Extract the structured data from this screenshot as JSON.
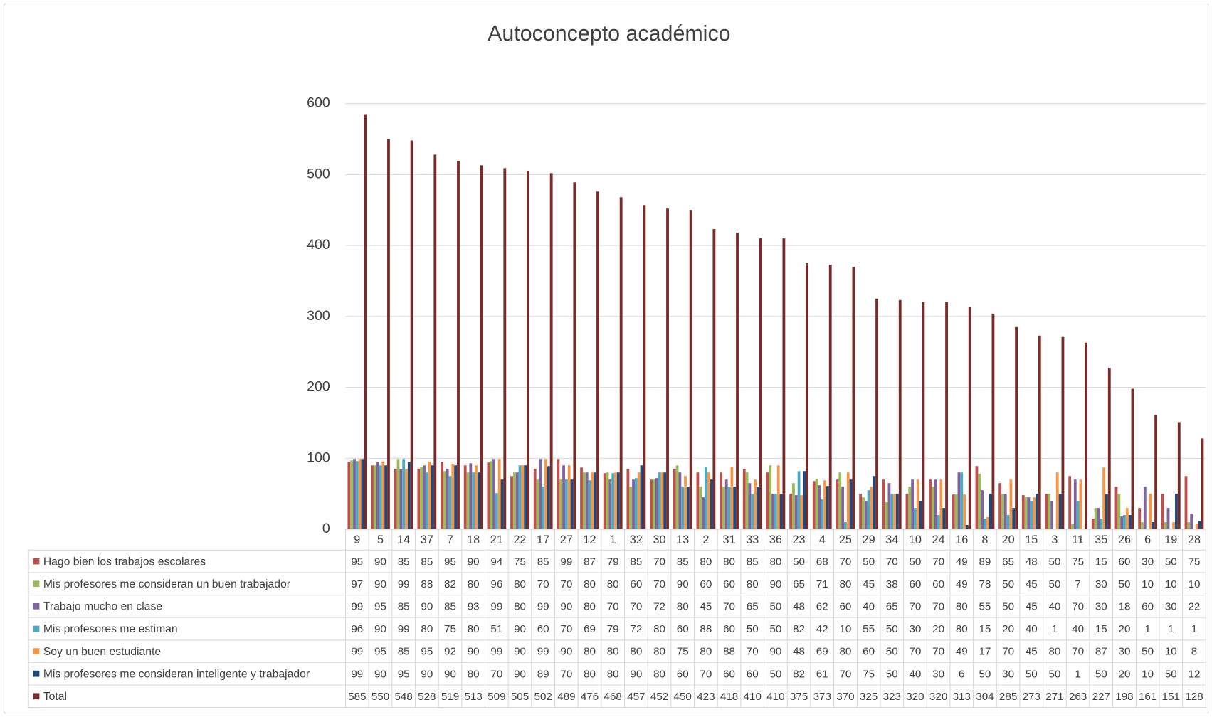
{
  "chart_data": {
    "type": "bar",
    "title": "Autoconcepto académico",
    "categories": [
      "9",
      "5",
      "14",
      "37",
      "7",
      "18",
      "21",
      "22",
      "17",
      "27",
      "12",
      "1",
      "32",
      "30",
      "13",
      "2",
      "31",
      "33",
      "36",
      "23",
      "4",
      "25",
      "29",
      "34",
      "10",
      "24",
      "16",
      "8",
      "20",
      "15",
      "3",
      "11",
      "35",
      "26",
      "6",
      "19",
      "28"
    ],
    "series": [
      {
        "name": "Hago bien los trabajos escolares",
        "color": "#c0504d",
        "values": [
          95,
          90,
          85,
          85,
          95,
          90,
          94,
          75,
          85,
          99,
          87,
          79,
          85,
          70,
          85,
          80,
          80,
          85,
          80,
          50,
          68,
          70,
          50,
          70,
          50,
          70,
          49,
          89,
          65,
          48,
          50,
          75,
          15,
          60,
          30,
          50,
          75
        ]
      },
      {
        "name": "Mis profesores me consideran un buen trabajador",
        "color": "#9bbb59",
        "values": [
          97,
          90,
          99,
          88,
          82,
          80,
          96,
          80,
          70,
          70,
          80,
          80,
          60,
          70,
          90,
          60,
          60,
          80,
          90,
          65,
          71,
          80,
          45,
          38,
          60,
          60,
          49,
          78,
          50,
          45,
          50,
          7,
          30,
          50,
          10,
          10,
          10
        ]
      },
      {
        "name": "Trabajo mucho en clase",
        "color": "#8064a2",
        "values": [
          99,
          95,
          85,
          90,
          85,
          93,
          99,
          80,
          99,
          90,
          80,
          70,
          70,
          72,
          80,
          45,
          70,
          65,
          50,
          48,
          62,
          60,
          40,
          65,
          70,
          70,
          80,
          55,
          50,
          45,
          40,
          70,
          30,
          18,
          60,
          30,
          22
        ]
      },
      {
        "name": "Mis profesores me estiman",
        "color": "#4bacc6",
        "values": [
          96,
          90,
          99,
          80,
          75,
          80,
          51,
          90,
          60,
          70,
          69,
          79,
          72,
          80,
          60,
          88,
          60,
          50,
          50,
          82,
          42,
          10,
          55,
          50,
          30,
          20,
          80,
          15,
          20,
          40,
          1,
          40,
          15,
          20,
          1,
          1,
          1
        ]
      },
      {
        "name": "Soy un buen estudiante",
        "color": "#f79646",
        "values": [
          99,
          95,
          85,
          95,
          92,
          90,
          99,
          90,
          99,
          90,
          80,
          80,
          80,
          80,
          75,
          80,
          88,
          70,
          90,
          48,
          69,
          80,
          60,
          50,
          70,
          70,
          49,
          17,
          70,
          45,
          80,
          70,
          87,
          30,
          50,
          10,
          8
        ]
      },
      {
        "name": "Mis profesores me consideran inteligente y trabajador",
        "color": "#1f497d",
        "values": [
          99,
          90,
          95,
          90,
          90,
          80,
          70,
          90,
          89,
          70,
          80,
          80,
          90,
          80,
          60,
          70,
          60,
          60,
          50,
          82,
          61,
          70,
          75,
          50,
          40,
          30,
          6,
          50,
          30,
          50,
          50,
          1,
          50,
          20,
          10,
          50,
          12
        ]
      },
      {
        "name": "Total",
        "color": "#772c2a",
        "values": [
          585,
          550,
          548,
          528,
          519,
          513,
          509,
          505,
          502,
          489,
          476,
          468,
          457,
          452,
          450,
          423,
          418,
          410,
          410,
          375,
          373,
          370,
          325,
          323,
          320,
          320,
          313,
          304,
          285,
          273,
          271,
          263,
          227,
          198,
          161,
          151,
          128
        ]
      }
    ],
    "ylim": [
      0,
      600
    ],
    "yticks": [
      0,
      100,
      200,
      300,
      400,
      500,
      600
    ],
    "grid": true
  }
}
